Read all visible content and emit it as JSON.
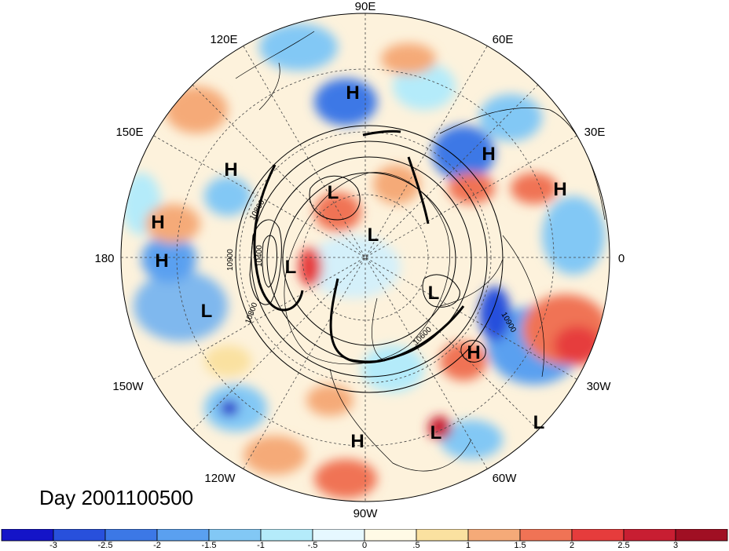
{
  "title": "Day 2001100500",
  "longitude_labels": {
    "top": "90E",
    "e120": "120E",
    "e60": "60E",
    "e150": "150E",
    "e30": "30E",
    "left": "180",
    "right": "0",
    "w150": "150W",
    "w30": "30W",
    "w120": "120W",
    "w60": "60W",
    "bottom": "90W"
  },
  "pressure_centers": {
    "h1": "H",
    "h2": "H",
    "h3": "H",
    "h4": "H",
    "h5": "H",
    "h6": "H",
    "h7": "H",
    "h8": "H",
    "l1": "L",
    "l2": "L",
    "l3": "L",
    "l4": "L",
    "l5": "L",
    "l6": "L",
    "l7": "L"
  },
  "contour_labels": {
    "c1": "10800",
    "c2": "10900",
    "c3": "10400",
    "c4": "10800",
    "c5": "10600",
    "c6": "10900"
  },
  "colorbar": {
    "labels": [
      "-3",
      "-2.5",
      "-2",
      "-1.5",
      "-1",
      "-.5",
      "0",
      ".5",
      "1",
      "1.5",
      "2",
      "2.5",
      "3"
    ],
    "colors": [
      "#1414c8",
      "#2850dc",
      "#3c78e6",
      "#5aa0f0",
      "#82c8f5",
      "#b4ebfa",
      "#e6f8ff",
      "#fffae6",
      "#fae1a0",
      "#f5aa78",
      "#f07355",
      "#e63c3c",
      "#c81e32",
      "#a00f23"
    ]
  }
}
